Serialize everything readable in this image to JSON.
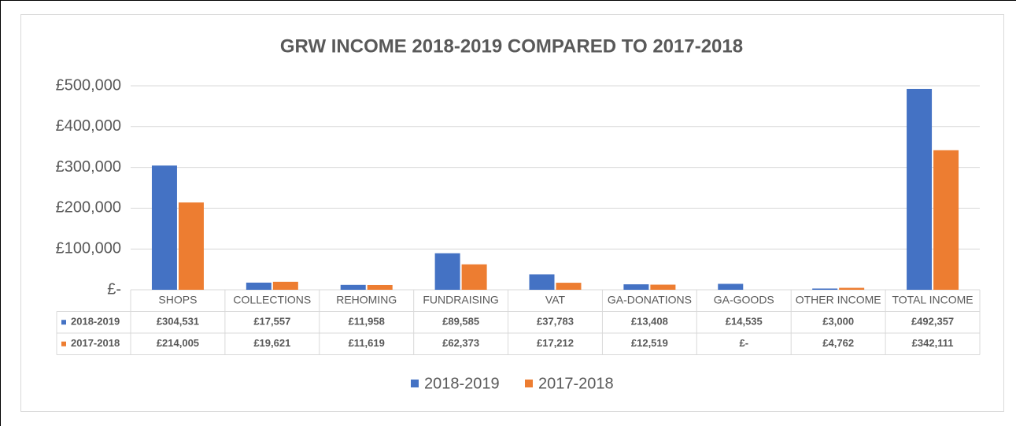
{
  "chart_data": {
    "type": "bar",
    "title": "GRW INCOME 2018-2019 COMPARED TO 2017-2018",
    "categories": [
      "SHOPS",
      "COLLECTIONS",
      "REHOMING",
      "FUNDRAISING",
      "VAT",
      "GA-DONATIONS",
      "GA-GOODS",
      "OTHER INCOME",
      "TOTAL INCOME"
    ],
    "series": [
      {
        "name": "2018-2019",
        "color": "#4472c4",
        "values": [
          304531,
          17557,
          11958,
          89585,
          37783,
          13408,
          14535,
          3000,
          492357
        ],
        "value_labels": [
          "£304,531",
          "£17,557",
          "£11,958",
          "£89,585",
          "£37,783",
          "£13,408",
          "£14,535",
          "£3,000",
          "£492,357"
        ]
      },
      {
        "name": "2017-2018",
        "color": "#ed7d31",
        "values": [
          214005,
          19621,
          11619,
          62373,
          17212,
          12519,
          0,
          4762,
          342111
        ],
        "value_labels": [
          "£214,005",
          "£19,621",
          "£11,619",
          "£62,373",
          "£17,212",
          "£12,519",
          "£-",
          "£4,762",
          "£342,111"
        ]
      }
    ],
    "ylim": [
      0,
      500000
    ],
    "yticks": [
      {
        "value": 0,
        "label": "£-"
      },
      {
        "value": 100000,
        "label": "£100,000"
      },
      {
        "value": 200000,
        "label": "£200,000"
      },
      {
        "value": 300000,
        "label": "£300,000"
      },
      {
        "value": 400000,
        "label": "£400,000"
      },
      {
        "value": 500000,
        "label": "£500,000"
      }
    ],
    "grid": true,
    "legend": "bottom"
  }
}
